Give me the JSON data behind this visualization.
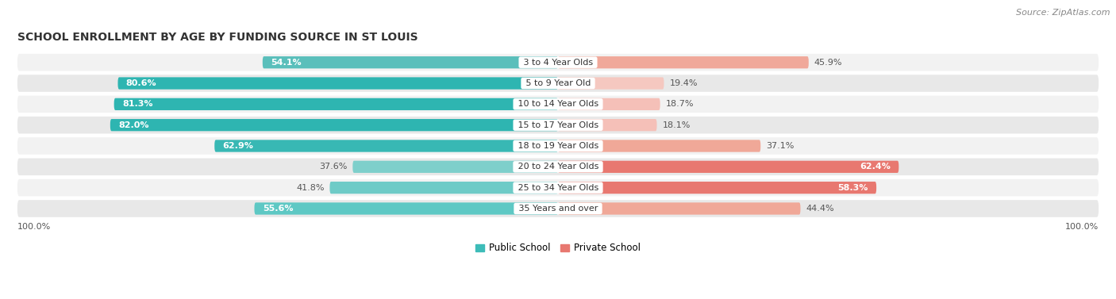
{
  "title": "SCHOOL ENROLLMENT BY AGE BY FUNDING SOURCE IN ST LOUIS",
  "source": "Source: ZipAtlas.com",
  "categories": [
    "3 to 4 Year Olds",
    "5 to 9 Year Old",
    "10 to 14 Year Olds",
    "15 to 17 Year Olds",
    "18 to 19 Year Olds",
    "20 to 24 Year Olds",
    "25 to 34 Year Olds",
    "35 Years and over"
  ],
  "public": [
    54.1,
    80.6,
    81.3,
    82.0,
    62.9,
    37.6,
    41.8,
    55.6
  ],
  "private": [
    45.9,
    19.4,
    18.7,
    18.1,
    37.1,
    62.4,
    58.3,
    44.4
  ],
  "public_colors": [
    "#5abfbb",
    "#2eb5b1",
    "#2eb5b1",
    "#2eb5b1",
    "#38b8b4",
    "#7ecfcb",
    "#6ecbc7",
    "#5ec8c4"
  ],
  "private_colors": [
    "#f0a89a",
    "#f5c8c0",
    "#f5c0b8",
    "#f5c0b8",
    "#f0a898",
    "#e87870",
    "#e87870",
    "#f0a898"
  ],
  "row_colors": [
    "#f2f2f2",
    "#e8e8e8",
    "#f2f2f2",
    "#e8e8e8",
    "#f2f2f2",
    "#e8e8e8",
    "#f2f2f2",
    "#e8e8e8"
  ],
  "title_fontsize": 10,
  "label_fontsize": 8,
  "legend_fontsize": 8.5,
  "source_fontsize": 8
}
